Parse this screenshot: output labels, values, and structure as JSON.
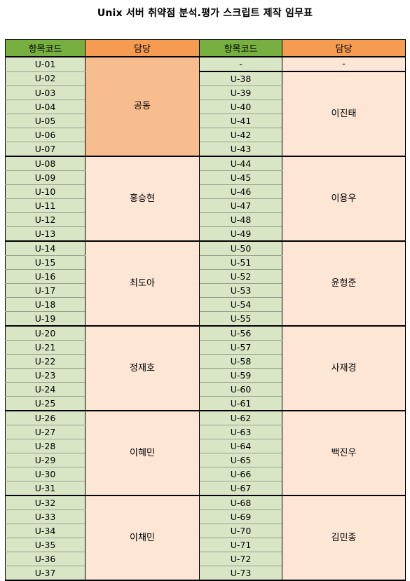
{
  "title": "Unix 서버 취약점 분석.평가 스크립트 제작 임무표",
  "headers": {
    "code": "항목코드",
    "owner": "담당"
  },
  "colors": {
    "code_header": "#77b041",
    "owner_header": "#f59b52",
    "code_cell": "#d9e6c6",
    "owner_cell": "#fde6d6",
    "owner_accent": "#f8bd8e"
  },
  "left": [
    {
      "owner": "공동",
      "codes": [
        "U-01",
        "U-02",
        "U-03",
        "U-04",
        "U-05",
        "U-06",
        "U-07"
      ]
    },
    {
      "owner": "홍승현",
      "codes": [
        "U-08",
        "U-09",
        "U-10",
        "U-11",
        "U-12",
        "U-13"
      ]
    },
    {
      "owner": "최도아",
      "codes": [
        "U-14",
        "U-15",
        "U-16",
        "U-17",
        "U-18",
        "U-19"
      ]
    },
    {
      "owner": "정재호",
      "codes": [
        "U-20",
        "U-21",
        "U-22",
        "U-23",
        "U-24",
        "U-25"
      ]
    },
    {
      "owner": "이혜민",
      "codes": [
        "U-26",
        "U-27",
        "U-28",
        "U-29",
        "U-30",
        "U-31"
      ]
    },
    {
      "owner": "이채민",
      "codes": [
        "U-32",
        "U-33",
        "U-34",
        "U-35",
        "U-36",
        "U-37"
      ]
    }
  ],
  "right": [
    {
      "owner": "-",
      "codes": [
        "-"
      ]
    },
    {
      "owner": "이진태",
      "codes": [
        "U-38",
        "U-39",
        "U-40",
        "U-41",
        "U-42",
        "U-43"
      ]
    },
    {
      "owner": "이용우",
      "codes": [
        "U-44",
        "U-45",
        "U-46",
        "U-47",
        "U-48",
        "U-49"
      ]
    },
    {
      "owner": "윤형준",
      "codes": [
        "U-50",
        "U-51",
        "U-52",
        "U-53",
        "U-54",
        "U-55"
      ]
    },
    {
      "owner": "사재경",
      "codes": [
        "U-56",
        "U-57",
        "U-58",
        "U-59",
        "U-60",
        "U-61"
      ]
    },
    {
      "owner": "백진우",
      "codes": [
        "U-62",
        "U-63",
        "U-64",
        "U-65",
        "U-66",
        "U-67"
      ]
    },
    {
      "owner": "김민종",
      "codes": [
        "U-68",
        "U-69",
        "U-70",
        "U-71",
        "U-72",
        "U-73"
      ]
    }
  ]
}
